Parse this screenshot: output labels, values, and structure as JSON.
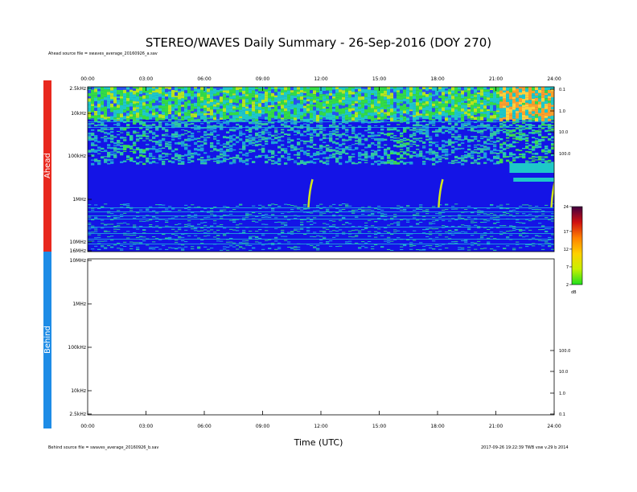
{
  "title": "STEREO/WAVES Daily Summary - 26-Sep-2016 (DOY 270)",
  "ahead_source": "Ahead source file = swaves_average_20160926_a.sav",
  "behind_source": "Behind source file = swaves_average_20160926_b.sav",
  "version_note": "2017-09-26 19:22:39 TWB vsw v.29 b 2014",
  "chart_data": [
    {
      "type": "heatmap",
      "name": "Ahead",
      "xlabel": "",
      "x_ticks": [
        "00:00",
        "03:00",
        "06:00",
        "09:00",
        "12:00",
        "15:00",
        "18:00",
        "21:00",
        "24:00"
      ],
      "xlim_hours": [
        0,
        24
      ],
      "y_ticks": [
        "2.5kHz",
        "10kHz",
        "100kHz",
        "1MHz",
        "10MHz",
        "16MHz"
      ],
      "right_ticks": [
        "0.1",
        "1.0",
        "10.0",
        "100.0"
      ],
      "type_iii_bursts_hours": [
        11.4,
        18.1,
        23.9
      ],
      "background_color": "#1414e6",
      "side_color": "#e8281e"
    },
    {
      "type": "heatmap",
      "name": "Behind",
      "xlabel": "Time (UTC)",
      "x_ticks": [
        "00:00",
        "03:00",
        "06:00",
        "09:00",
        "12:00",
        "15:00",
        "18:00",
        "21:00",
        "24:00"
      ],
      "xlim_hours": [
        0,
        24
      ],
      "y_ticks": [
        "10MHz",
        "1MHz",
        "100kHz",
        "10kHz",
        "2.5kHz"
      ],
      "right_ticks": [
        "100.0",
        "10.0",
        "1.0",
        "0.1"
      ],
      "data": "none",
      "side_color": "#1e8ce6"
    }
  ],
  "colorbar": {
    "ticks": [
      "24",
      "17",
      "12",
      "7",
      "2"
    ],
    "unit": "dB",
    "range": [
      2,
      24
    ]
  }
}
